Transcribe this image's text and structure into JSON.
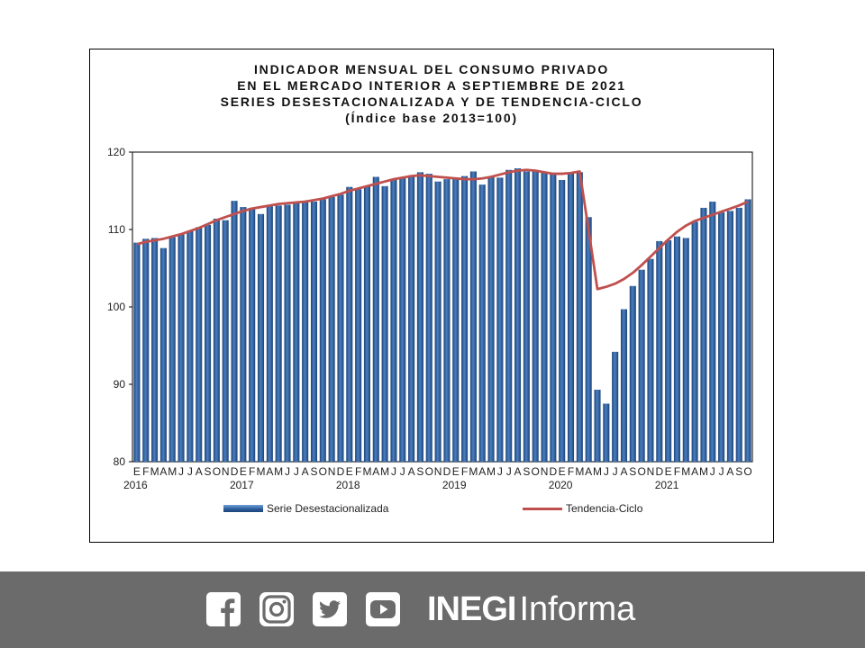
{
  "chart_data": {
    "type": "bar",
    "title_lines": [
      "INDICADOR MENSUAL DEL CONSUMO PRIVADO",
      "EN EL MERCADO INTERIOR A SEPTIEMBRE DE 2021",
      "SERIES DESESTACIONALIZADA  Y DE TENDENCIA-CICLO",
      "(Índice base 2013=100)"
    ],
    "ylim": [
      80,
      120
    ],
    "y_ticks": [
      80,
      90,
      100,
      110,
      120
    ],
    "grid": false,
    "legend_position": "bottom",
    "month_letters": [
      "E",
      "F",
      "M",
      "A",
      "M",
      "J",
      "J",
      "A",
      "S",
      "O",
      "N",
      "D"
    ],
    "years": [
      "2016",
      "2017",
      "2018",
      "2019",
      "2020",
      "2021"
    ],
    "series": [
      {
        "name": "Serie Desestacionalizada",
        "kind": "bar",
        "color": "#2a5a9a",
        "values": [
          108.3,
          108.8,
          108.9,
          107.6,
          109.0,
          109.4,
          109.8,
          110.3,
          110.6,
          111.4,
          111.2,
          113.7,
          112.9,
          112.8,
          112.0,
          113.0,
          113.1,
          113.2,
          113.4,
          113.5,
          113.6,
          113.9,
          114.2,
          114.5,
          115.5,
          115.2,
          115.6,
          116.8,
          115.6,
          116.5,
          116.7,
          117.0,
          117.4,
          117.2,
          116.2,
          116.5,
          116.6,
          116.9,
          117.5,
          115.8,
          116.8,
          116.7,
          117.7,
          117.9,
          117.5,
          117.6,
          117.4,
          117.3,
          116.4,
          117.3,
          117.4,
          111.6,
          89.3,
          87.5,
          94.2,
          99.7,
          102.7,
          104.8,
          106.2,
          108.5,
          108.6,
          109.1,
          108.9,
          111.0,
          112.8,
          113.6,
          112.2,
          112.4,
          112.8,
          113.9
        ]
      },
      {
        "name": "Tendencia-Ciclo",
        "kind": "line",
        "color": "#c0504d",
        "values": [
          108.1,
          108.4,
          108.6,
          108.8,
          109.1,
          109.4,
          109.8,
          110.2,
          110.7,
          111.2,
          111.6,
          112.0,
          112.4,
          112.7,
          112.9,
          113.1,
          113.3,
          113.4,
          113.5,
          113.6,
          113.8,
          114.0,
          114.3,
          114.6,
          115.0,
          115.3,
          115.6,
          115.9,
          116.2,
          116.5,
          116.7,
          116.9,
          117.0,
          116.9,
          116.8,
          116.7,
          116.6,
          116.5,
          116.5,
          116.6,
          116.8,
          117.1,
          117.4,
          117.6,
          117.7,
          117.6,
          117.4,
          117.2,
          117.2,
          117.3,
          117.5,
          110.0,
          102.3,
          102.6,
          103.0,
          103.6,
          104.4,
          105.4,
          106.5,
          107.6,
          108.7,
          109.7,
          110.5,
          111.1,
          111.5,
          111.9,
          112.3,
          112.7,
          113.1,
          113.6
        ]
      }
    ]
  },
  "footer": {
    "social_icons": [
      "facebook-icon",
      "instagram-icon",
      "twitter-icon",
      "youtube-icon"
    ],
    "brand_bold": "INEGI",
    "brand_light": "Informa"
  }
}
